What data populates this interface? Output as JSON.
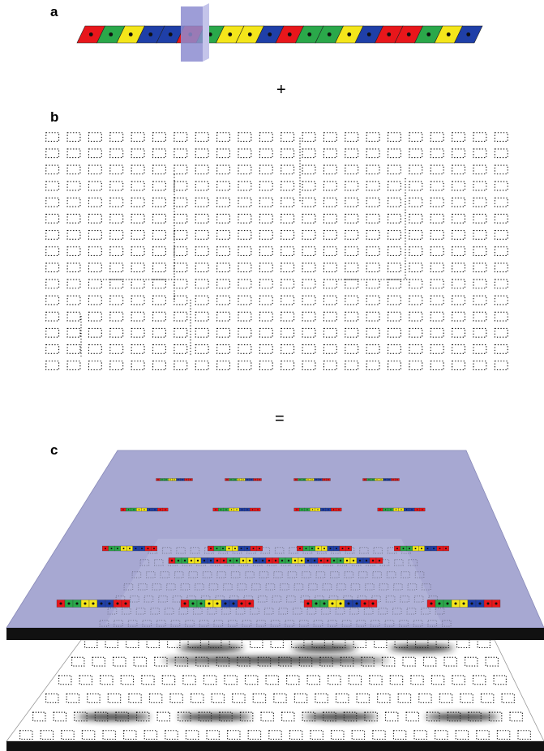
{
  "panels": [
    {
      "label": "a"
    },
    {
      "label": "b"
    },
    {
      "label": "c"
    }
  ],
  "operators": [
    "+",
    "="
  ]
}
